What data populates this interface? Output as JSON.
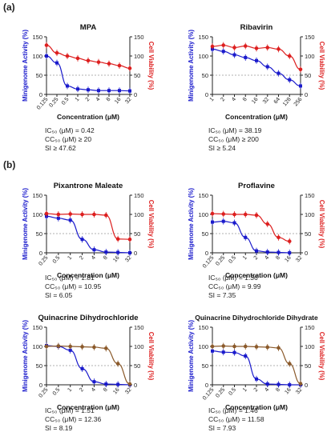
{
  "section_labels": [
    "(a)",
    "(b)"
  ],
  "chart_data": [
    {
      "type": "scatter",
      "title": "MPA",
      "xlabel": "Concentration (μM)",
      "ylabel_left": "Minigenome Activity (%)",
      "ylabel_right": "Cell Viability (%)",
      "x_ticks": [
        "0.125",
        "0.25",
        "0.5",
        "1",
        "2",
        "4",
        "8",
        "16",
        "32"
      ],
      "y_left_ticks": [
        "0",
        "50",
        "100",
        "150"
      ],
      "y_right_ticks": [
        "0",
        "50",
        "100",
        "150"
      ],
      "ylim": [
        0,
        150
      ],
      "series": [
        {
          "name": "Minigenome Activity",
          "color": "#1a1acc",
          "x": [
            0.125,
            0.25,
            0.5,
            1,
            2,
            4,
            8,
            16,
            32
          ],
          "values": [
            100,
            82,
            22,
            14,
            12,
            10,
            10,
            10,
            9
          ]
        },
        {
          "name": "Cell Viability",
          "color": "#dd1f1f",
          "x": [
            0.125,
            0.25,
            0.5,
            1,
            2,
            4,
            8,
            16,
            32
          ],
          "values": [
            128,
            108,
            100,
            94,
            88,
            84,
            80,
            75,
            68
          ]
        }
      ],
      "stats": {
        "ic50": "IC₅₀ (μM) = 0.42",
        "cc50": "CC₅₀ (μM) ≥ 20",
        "si": "SI ≥ 47.62"
      }
    },
    {
      "type": "scatter",
      "title": "Ribavirin",
      "xlabel": "Concentration (μM)",
      "ylabel_left": "Minigenome Activity (%)",
      "ylabel_right": "Cell Viability (%)",
      "x_ticks": [
        "1",
        "2",
        "4",
        "8",
        "16",
        "32",
        "64",
        "128",
        "256"
      ],
      "y_left_ticks": [
        "0",
        "50",
        "100",
        "150"
      ],
      "y_right_ticks": [
        "0",
        "50",
        "100",
        "150"
      ],
      "ylim": [
        0,
        150
      ],
      "series": [
        {
          "name": "Minigenome Activity",
          "color": "#1a1acc",
          "x": [
            1,
            2,
            4,
            8,
            16,
            32,
            64,
            128,
            256
          ],
          "values": [
            118,
            112,
            103,
            96,
            88,
            72,
            55,
            38,
            22
          ]
        },
        {
          "name": "Cell Viability",
          "color": "#dd1f1f",
          "x": [
            1,
            2,
            4,
            8,
            16,
            32,
            64,
            128,
            256
          ],
          "values": [
            125,
            128,
            122,
            126,
            120,
            122,
            118,
            100,
            65
          ]
        }
      ],
      "stats": {
        "ic50": "IC₅₀ (μM) = 38.19",
        "cc50": "CC₅₀ (μM) ≥ 200",
        "si": "SI ≥ 5.24"
      }
    },
    {
      "type": "scatter",
      "title": "Pixantrone Maleate",
      "xlabel": "Concentration (μM)",
      "ylabel_left": "Minigenome Activity (%)",
      "ylabel_right": "Cell Viability (%)",
      "x_ticks": [
        "0.25",
        "0.5",
        "1",
        "2",
        "4",
        "8",
        "16",
        "32"
      ],
      "y_left_ticks": [
        "0",
        "50",
        "100",
        "150"
      ],
      "y_right_ticks": [
        "0",
        "50",
        "100",
        "150"
      ],
      "ylim": [
        0,
        150
      ],
      "series": [
        {
          "name": "Minigenome Activity",
          "color": "#1a1acc",
          "x": [
            0.25,
            0.5,
            1,
            2,
            4,
            8,
            16,
            32
          ],
          "values": [
            95,
            90,
            85,
            35,
            8,
            2,
            1,
            0
          ]
        },
        {
          "name": "Cell Viability",
          "color": "#dd1f1f",
          "x": [
            0.25,
            0.5,
            1,
            2,
            4,
            8,
            16,
            32
          ],
          "values": [
            102,
            100,
            101,
            100,
            100,
            98,
            36,
            35
          ]
        }
      ],
      "stats": {
        "ic50": "IC₅₀ (μM) = 1.81",
        "cc50": "CC₅₀ (μM) = 10.95",
        "si": "SI = 6.05"
      }
    },
    {
      "type": "scatter",
      "title": "Proflavine",
      "xlabel": "Concentration (μM)",
      "ylabel_left": "Minigenome Activity (%)",
      "ylabel_right": "Cell Viability (%)",
      "x_ticks": [
        "0.125",
        "0.25",
        "0.5",
        "1",
        "2",
        "4",
        "8",
        "16",
        "32"
      ],
      "y_left_ticks": [
        "0",
        "50",
        "100",
        "150"
      ],
      "y_right_ticks": [
        "0",
        "50",
        "100",
        "150"
      ],
      "ylim": [
        0,
        150
      ],
      "series": [
        {
          "name": "Minigenome Activity",
          "color": "#1a1acc",
          "x": [
            0.125,
            0.25,
            0.5,
            1,
            2,
            4,
            8,
            16
          ],
          "values": [
            80,
            82,
            78,
            40,
            5,
            2,
            1,
            0
          ]
        },
        {
          "name": "Cell Viability",
          "color": "#dd1f1f",
          "x": [
            0.125,
            0.25,
            0.5,
            1,
            2,
            4,
            8,
            16
          ],
          "values": [
            102,
            101,
            100,
            100,
            98,
            75,
            40,
            30
          ]
        }
      ],
      "stats": {
        "ic50": "IC₅₀ (μM) = 1.36",
        "cc50": "CC₅₀ (μM) = 9.99",
        "si": "SI = 7.35"
      }
    },
    {
      "type": "scatter",
      "title": "Quinacrine Dihydrochloride",
      "xlabel": "Concentration (μM)",
      "ylabel_left": "Minigenome Activity (%)",
      "ylabel_right": "Cell Viability (%)",
      "x_ticks": [
        "0.25",
        "0.5",
        "1",
        "2",
        "4",
        "8",
        "16",
        "32"
      ],
      "y_left_ticks": [
        "0",
        "50",
        "100",
        "150"
      ],
      "y_right_ticks": [
        "0",
        "50",
        "100",
        "150"
      ],
      "ylim": [
        0,
        150
      ],
      "series": [
        {
          "name": "Minigenome Activity",
          "color": "#1a1acc",
          "x": [
            0.25,
            0.5,
            1,
            2,
            4,
            8,
            16,
            32
          ],
          "values": [
            102,
            100,
            90,
            42,
            8,
            2,
            1,
            0
          ]
        },
        {
          "name": "Cell Viability",
          "color": "#8b5a2b",
          "x": [
            0.25,
            0.5,
            1,
            2,
            4,
            8,
            16,
            32
          ],
          "values": [
            100,
            101,
            100,
            99,
            98,
            95,
            55,
            2
          ]
        }
      ],
      "stats": {
        "ic50": "IC₅₀ (μM) = 1.51",
        "cc50": "CC₅₀ (μM) = 12.36",
        "si": "SI = 8.19"
      }
    },
    {
      "type": "scatter",
      "title": "Quinacrine Dihydrochloride Dihydrate",
      "xlabel": "Concentration (μM)",
      "ylabel_left": "Minigenome Activity (%)",
      "ylabel_right": "Cell Viability (%)",
      "x_ticks": [
        "0.125",
        "0.25",
        "0.5",
        "1",
        "2",
        "4",
        "8",
        "16",
        "32"
      ],
      "y_left_ticks": [
        "0",
        "50",
        "100",
        "150"
      ],
      "y_right_ticks": [
        "0",
        "50",
        "100",
        "150"
      ],
      "ylim": [
        0,
        150
      ],
      "series": [
        {
          "name": "Minigenome Activity",
          "color": "#1a1acc",
          "x": [
            0.125,
            0.25,
            0.5,
            1,
            2,
            4,
            8,
            16,
            32
          ],
          "values": [
            88,
            85,
            84,
            75,
            15,
            2,
            1,
            0,
            0
          ]
        },
        {
          "name": "Cell Viability",
          "color": "#8b5a2b",
          "x": [
            0.125,
            0.25,
            0.5,
            1,
            2,
            4,
            8,
            16,
            32
          ],
          "values": [
            100,
            101,
            100,
            100,
            99,
            98,
            96,
            55,
            3
          ]
        }
      ],
      "stats": {
        "ic50": "IC₅₀ (μM) = 1.46",
        "cc50": "CC₅₀ (μM) = 11.58",
        "si": "SI = 7.93"
      }
    }
  ]
}
